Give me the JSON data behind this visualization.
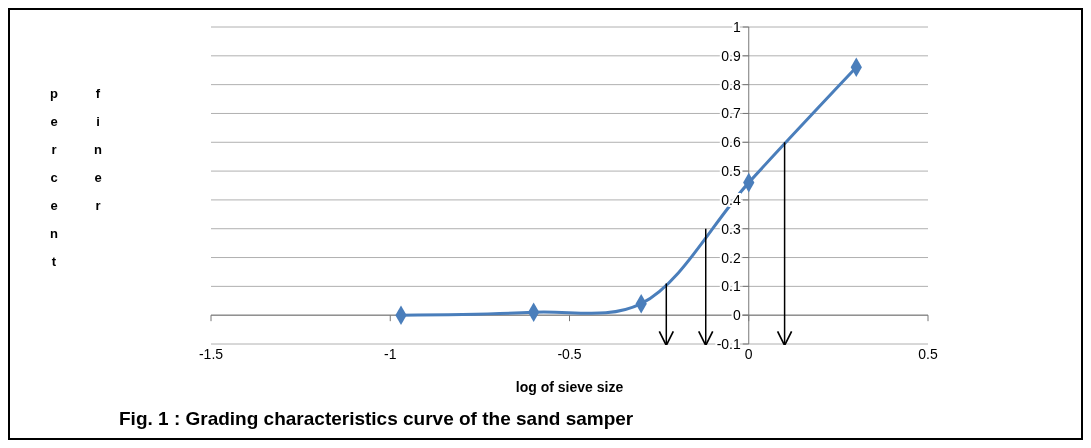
{
  "chart_data": {
    "type": "line",
    "title": "Fig. 1 : Grading characteristics curve of the sand samper",
    "xlabel": "log of sieve size",
    "ylabel": "percent finer",
    "xlim": [
      -1.5,
      0.5
    ],
    "xticks": [
      -1.5,
      -1,
      -0.5,
      0,
      0.5
    ],
    "ylim": [
      -0.1,
      1
    ],
    "yticks": [
      -0.1,
      0,
      0.1,
      0.2,
      0.3,
      0.4,
      0.5,
      0.6,
      0.7,
      0.8,
      0.9,
      1
    ],
    "grid": "y",
    "marker": "diamond",
    "line_style": "solid",
    "series": [
      {
        "color": "#4a7ebb",
        "x": [
          -0.97,
          -0.6,
          -0.3,
          0,
          0.3
        ],
        "values": [
          0,
          0.01,
          0.04,
          0.46,
          0.86
        ]
      },
      {
        "color": "#000000",
        "marker": "none",
        "x": [
          -0.23,
          -0.23
        ],
        "values": [
          0.11,
          -0.1
        ]
      },
      {
        "color": "#000000",
        "marker": "none",
        "x": [
          -0.12,
          -0.12
        ],
        "values": [
          0.3,
          -0.1
        ]
      },
      {
        "color": "#000000",
        "marker": "none",
        "x": [
          0.1,
          0.1
        ],
        "values": [
          0.6,
          -0.1
        ]
      }
    ]
  }
}
